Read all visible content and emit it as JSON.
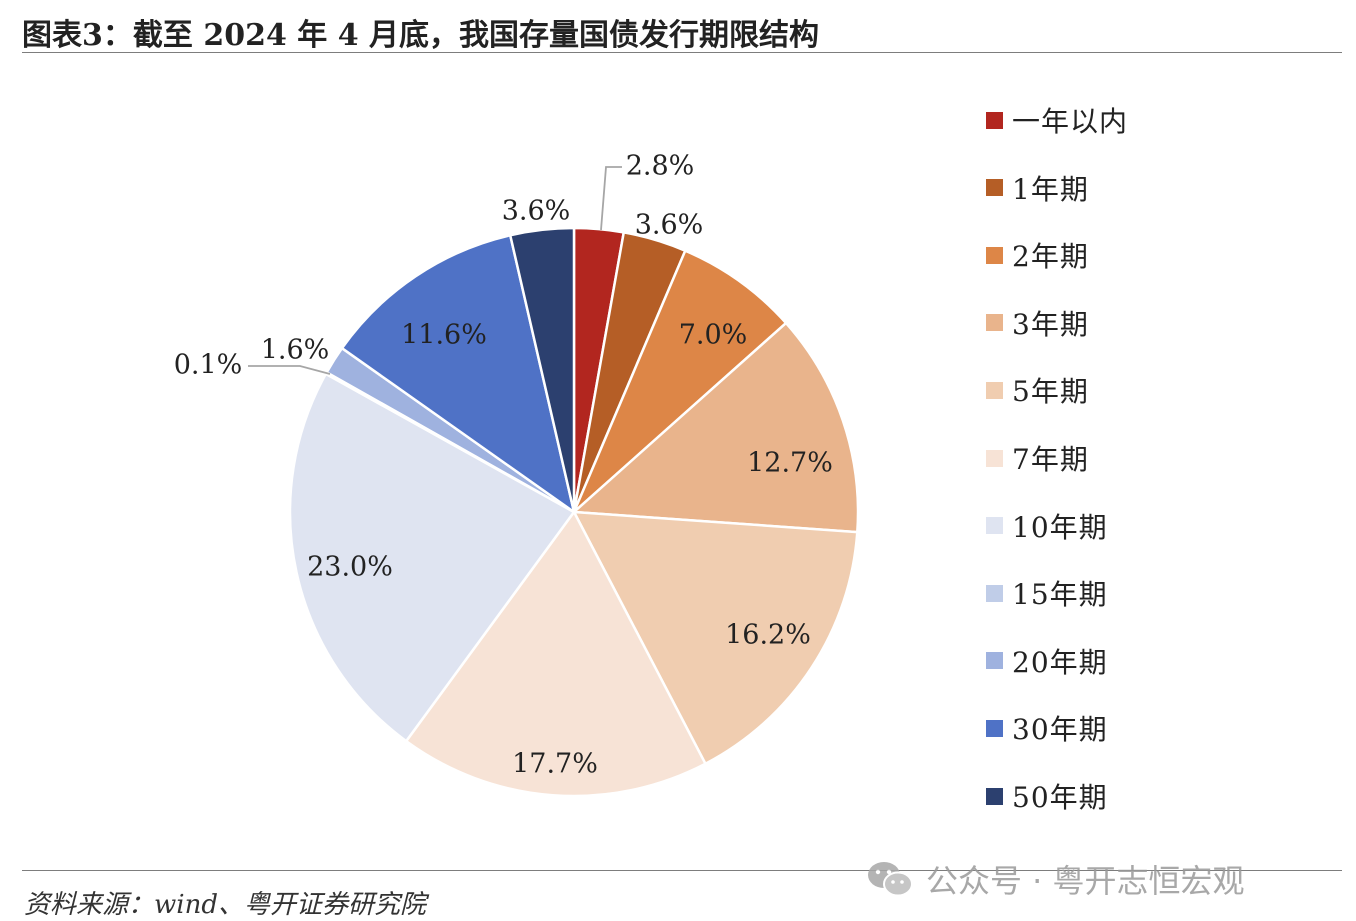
{
  "title": "图表3：截至 2024 年 4 月底，我国存量国债发行期限结构",
  "source": "资料来源：wind、粤开证券研究院",
  "watermark": {
    "icon": "wechat-icon",
    "text": "公众号 · 粤开志恒宏观"
  },
  "chart_data": {
    "type": "pie",
    "title": "",
    "legend_position": "right",
    "slices": [
      {
        "name": "一年以内",
        "value": 2.8,
        "label": "2.8%",
        "color": "#b2261f"
      },
      {
        "name": "1年期",
        "value": 3.6,
        "label": "3.6%",
        "color": "#b55e26"
      },
      {
        "name": "2年期",
        "value": 7.0,
        "label": "7.0%",
        "color": "#dd8647"
      },
      {
        "name": "3年期",
        "value": 12.7,
        "label": "12.7%",
        "color": "#e9b48c"
      },
      {
        "name": "5年期",
        "value": 16.2,
        "label": "16.2%",
        "color": "#f0cdb0"
      },
      {
        "name": "7年期",
        "value": 17.7,
        "label": "17.7%",
        "color": "#f7e3d6"
      },
      {
        "name": "10年期",
        "value": 23.0,
        "label": "23.0%",
        "color": "#dfe4f1"
      },
      {
        "name": "15年期",
        "value": 0.1,
        "label": "0.1%",
        "color": "#c0cde8"
      },
      {
        "name": "20年期",
        "value": 1.6,
        "label": "1.6%",
        "color": "#9fb2df"
      },
      {
        "name": "30年期",
        "value": 11.6,
        "label": "11.6%",
        "color": "#4f72c6"
      },
      {
        "name": "50年期",
        "value": 3.6,
        "label": "3.6%",
        "color": "#2c406f"
      }
    ]
  }
}
